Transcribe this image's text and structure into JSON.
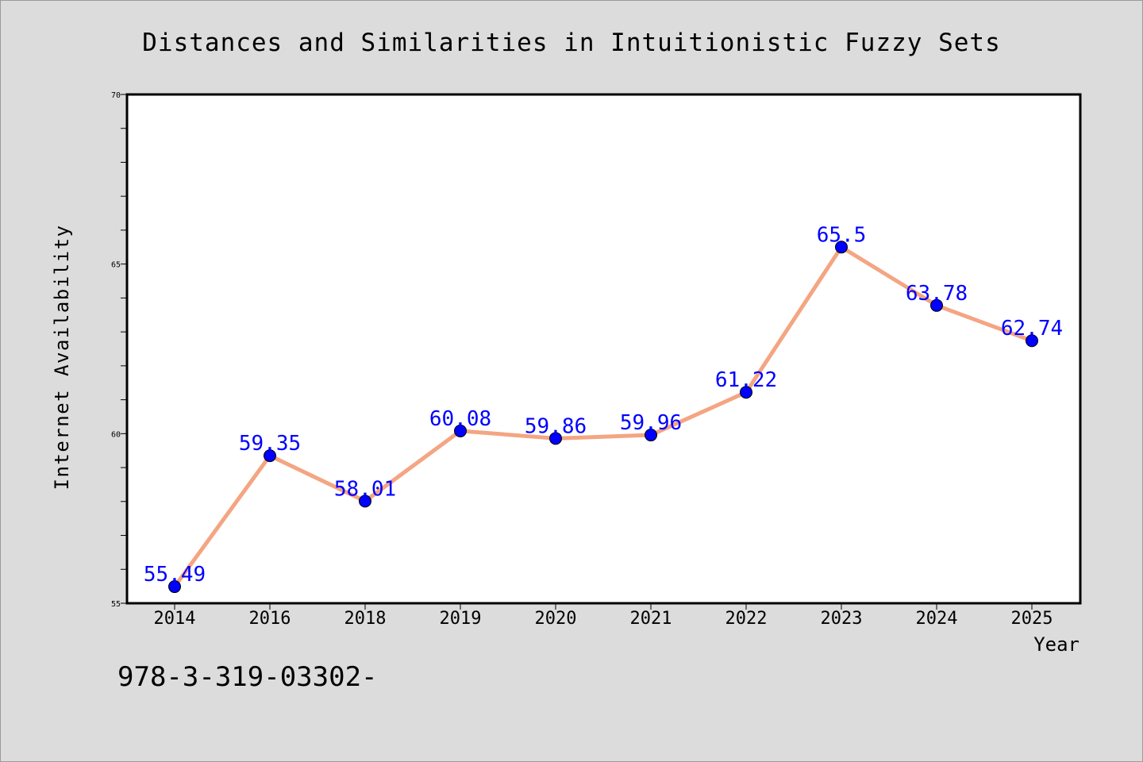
{
  "chart_data": {
    "type": "line",
    "title": "Distances and Similarities in Intuitionistic Fuzzy Sets",
    "xlabel": "Year",
    "ylabel": "Internet Availability",
    "categories": [
      "2014",
      "2016",
      "2018",
      "2019",
      "2020",
      "2021",
      "2022",
      "2023",
      "2024",
      "2025"
    ],
    "series": [
      {
        "values": [
          55.49,
          59.35,
          58.01,
          60.08,
          59.86,
          59.96,
          61.22,
          65.5,
          63.78,
          62.74
        ],
        "data_labels": [
          "55.49",
          "59.35",
          "58.01",
          "60.08",
          "59.86",
          "59.96",
          "61.22",
          "65.5",
          "63.78",
          "62.74"
        ]
      }
    ],
    "ylim": [
      55,
      70
    ],
    "yticks": [
      "55",
      "60",
      "65",
      "70"
    ],
    "y_minor_step": 1,
    "grid": false,
    "line_color": "#f4a582",
    "marker_color": "#0000ff",
    "label_color": "#0000ff"
  },
  "footer": {
    "text": "978-3-319-03302-"
  }
}
